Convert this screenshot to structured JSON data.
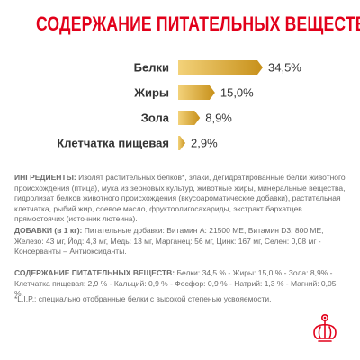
{
  "page": {
    "title": "СОДЕРЖАНИЕ ПИТАТЕЛЬНЫХ ВЕЩЕСТВ"
  },
  "chart_data": {
    "type": "bar",
    "orientation": "horizontal",
    "categories": [
      "Белки",
      "Жиры",
      "Зола",
      "Клетчатка пищевая"
    ],
    "values": [
      34.5,
      15.0,
      8.9,
      2.9
    ],
    "value_labels": [
      "34,5%",
      "15,0%",
      "8,9%",
      "2,9%"
    ],
    "unit": "%",
    "xlim": [
      0,
      34.5
    ],
    "grid": false,
    "legend": "none",
    "colors": {
      "bar_start": "#f3d27a",
      "bar_end": "#c7901a"
    }
  },
  "sections": {
    "ingredients_label": "ИНГРЕДИЕНТЫ:",
    "ingredients_text": "Изолят растительных белков*, злаки, дегидратированные белки животного происхождения (птица), мука из зерновых культур, животные жиры, минеральные вещества, гидролизат белков животного происхождения (вкусоароматические добавки), растительная клетчатка, рыбий жир, соевое масло, фруктоолигосахариды, экстракт бархатцев прямостоячих (источник лютеина).",
    "additives_label": "ДОБАВКИ (в 1 кг):",
    "additives_text": "Питательные добавки: Витамин A: 21500 МЕ, Витамин D3: 800 МЕ, Железо: 43 мг, Йод: 4,3 мг, Медь: 13 мг, Марганец: 56 мг, Цинк: 167 мг, Селен: 0,08 мг - Консерванты – Антиоксиданты.",
    "composition_label": "СОДЕРЖАНИЕ ПИТАТЕЛЬНЫХ ВЕЩЕСТВ:",
    "composition_text": "Белки: 34,5 % - Жиры: 15,0 % - Зола: 8,9% - Клетчатка пищевая: 2,9 % - Кальций: 0,9 % - Фосфор: 0,9 % - Натрий: 1,3 % - Магний: 0,05 %.",
    "footnote": "*L.I.P.: специально отобранные белки с высокой степенью усвояемости."
  },
  "brand": {
    "logo_icon": "crown-icon",
    "color": "#e2001a"
  }
}
